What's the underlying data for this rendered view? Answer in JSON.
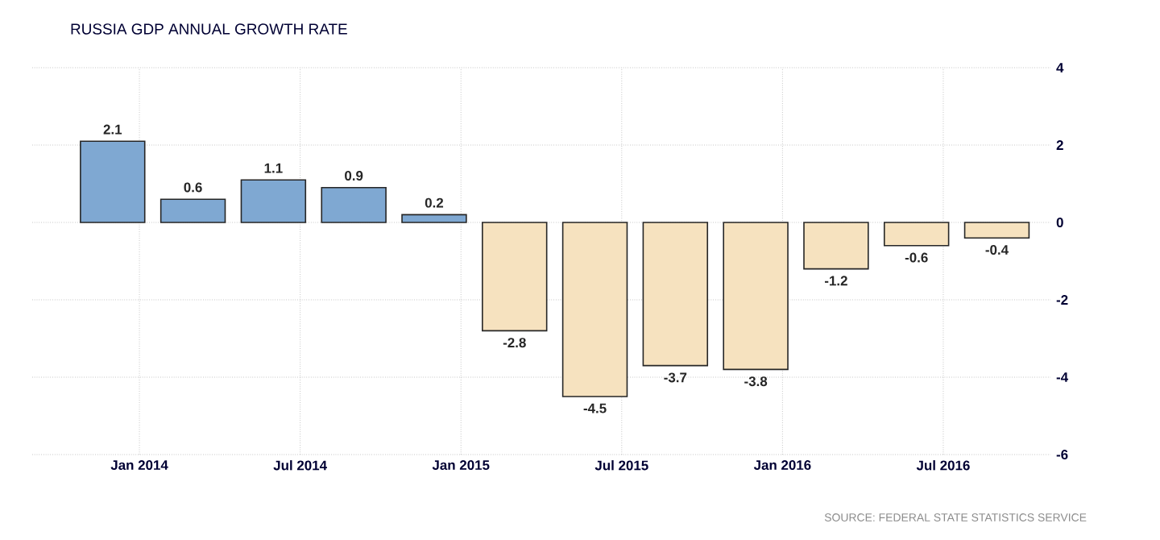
{
  "chart_data": {
    "type": "bar",
    "title": "RUSSIA GDP ANNUAL GROWTH RATE",
    "x": [
      "2013-12",
      "2014-03",
      "2014-06",
      "2014-09",
      "2014-12",
      "2015-03",
      "2015-06",
      "2015-09",
      "2015-12",
      "2016-03",
      "2016-06",
      "2016-09"
    ],
    "values": [
      2.1,
      0.6,
      1.1,
      0.9,
      0.2,
      -2.8,
      -4.5,
      -3.7,
      -3.8,
      -1.2,
      -0.6,
      -0.4
    ],
    "colors": [
      "#7fa8d2",
      "#7fa8d2",
      "#7fa8d2",
      "#7fa8d2",
      "#7fa8d2",
      "#f6e2bf",
      "#f6e2bf",
      "#f6e2bf",
      "#f6e2bf",
      "#f6e2bf",
      "#f6e2bf",
      "#f6e2bf"
    ],
    "data_labels": true,
    "xlim": [
      "2013-09",
      "2016-11"
    ],
    "xticks": [
      {
        "value": "2014-01",
        "label": "Jan 2014"
      },
      {
        "value": "2014-07",
        "label": "Jul 2014"
      },
      {
        "value": "2015-01",
        "label": "Jan 2015"
      },
      {
        "value": "2015-07",
        "label": "Jul 2015"
      },
      {
        "value": "2016-01",
        "label": "Jan 2016"
      },
      {
        "value": "2016-07",
        "label": "Jul 2016"
      }
    ],
    "ylim": [
      -6,
      4
    ],
    "yticks": [
      -6,
      -4,
      -2,
      0,
      2,
      4
    ],
    "grid": true,
    "annotations": [
      "SOURCE: FEDERAL STATE STATISTICS SERVICE"
    ]
  }
}
